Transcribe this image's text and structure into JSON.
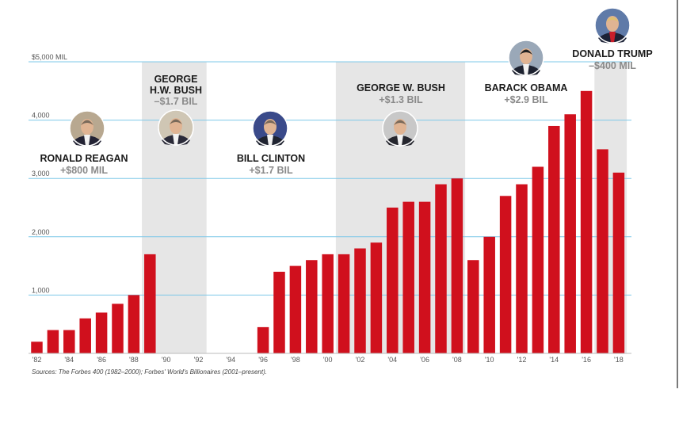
{
  "chart_data": {
    "type": "bar",
    "title": "",
    "xlabel": "",
    "ylabel": "",
    "unit": "MIL",
    "ylim": [
      0,
      5000
    ],
    "y_ticks": [
      {
        "value": 5000,
        "label": "$5,000 MIL"
      },
      {
        "value": 4000,
        "label": "4,000"
      },
      {
        "value": 3000,
        "label": "3,000"
      },
      {
        "value": 2000,
        "label": "2,000"
      },
      {
        "value": 1000,
        "label": "1,000"
      }
    ],
    "x_tick_labels": [
      "'82",
      "'84",
      "'86",
      "'88",
      "'90",
      "'92",
      "'94",
      "'96",
      "'98",
      "'00",
      "'02",
      "'04",
      "'06",
      "'08",
      "'10",
      "'12",
      "'14",
      "'16",
      "'18"
    ],
    "categories": [
      "1982",
      "1983",
      "1984",
      "1985",
      "1986",
      "1987",
      "1988",
      "1989",
      "1990",
      "1991",
      "1992",
      "1993",
      "1994",
      "1995",
      "1996",
      "1997",
      "1998",
      "1999",
      "2000",
      "2001",
      "2002",
      "2003",
      "2004",
      "2005",
      "2006",
      "2007",
      "2008",
      "2009",
      "2010",
      "2011",
      "2012",
      "2013",
      "2014",
      "2015",
      "2016",
      "2017",
      "2018"
    ],
    "values": [
      200,
      400,
      400,
      600,
      700,
      850,
      1000,
      1700,
      null,
      null,
      null,
      null,
      null,
      null,
      450,
      1400,
      1500,
      1600,
      1700,
      1700,
      1800,
      1900,
      2500,
      2600,
      2600,
      2900,
      3000,
      1600,
      2000,
      2700,
      2900,
      3200,
      3900,
      4100,
      4500,
      3500,
      3100
    ],
    "bar_color": "#d0101d",
    "grid": true,
    "grid_color": "#7ec8e8",
    "shade_color": "#e6e6e6",
    "presidencies": [
      {
        "name": "RONALD REAGAN",
        "change": "+$800 MIL",
        "start": 1982,
        "end": 1989,
        "shaded": false,
        "avatar": "reagan-portrait-icon"
      },
      {
        "name": "GEORGE H.W. BUSH",
        "name_lines": [
          "GEORGE",
          "H.W. BUSH"
        ],
        "change": "–$1.7 BIL",
        "start": 1989,
        "end": 1993,
        "shaded": true,
        "avatar": "hw-bush-portrait-icon"
      },
      {
        "name": "BILL CLINTON",
        "change": "+$1.7 BIL",
        "start": 1993,
        "end": 2001,
        "shaded": false,
        "avatar": "clinton-portrait-icon"
      },
      {
        "name": "GEORGE W. BUSH",
        "change": "+$1.3 BIL",
        "start": 2001,
        "end": 2009,
        "shaded": true,
        "avatar": "w-bush-portrait-icon"
      },
      {
        "name": "BARACK OBAMA",
        "change": "+$2.9 BIL",
        "start": 2009,
        "end": 2017,
        "shaded": false,
        "avatar": "obama-portrait-icon"
      },
      {
        "name": "DONALD TRUMP",
        "change": "–$400 MIL",
        "start": 2017,
        "end": 2019,
        "shaded": true,
        "avatar": "trump-portrait-icon"
      }
    ],
    "source": "Sources: The Forbes 400 (1982–2000); Forbes' World's Billionaires (2001–present)."
  }
}
